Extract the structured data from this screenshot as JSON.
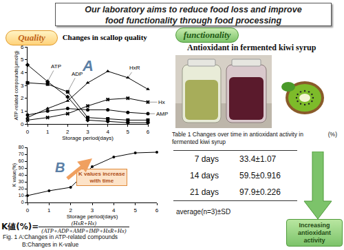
{
  "header": {
    "lines": [
      "Our laboratory aims to reduce food loss and improve",
      "food functionality through food processing"
    ]
  },
  "quality": {
    "label": "Quality"
  },
  "chart_data": [
    {
      "type": "line",
      "title": "Changes in scallop quality",
      "annotations": [
        "A"
      ],
      "x_label": "Storage period(days)",
      "y_label": "ATP-related compounds(μmol/g)",
      "x": [
        0,
        1,
        2,
        3,
        4,
        5,
        6
      ],
      "xlim": [
        0,
        6
      ],
      "xticks": [
        0,
        1,
        2,
        3,
        4,
        5,
        6
      ],
      "ylim": [
        0,
        6
      ],
      "yticks": [
        0,
        1,
        2,
        3,
        4,
        5,
        6
      ],
      "grid": false,
      "series": [
        {
          "name": "ATP",
          "color": "#000000",
          "marker": "diamond",
          "line_style": "solid",
          "values": [
            4.6,
            3.3,
            2.1,
            0.3,
            0.2,
            0.1,
            0.1
          ]
        },
        {
          "name": "ADP",
          "color": "#000000",
          "marker": "square",
          "line_style": "solid",
          "values": [
            3.2,
            3.1,
            2.5,
            0.5,
            0.4,
            0.3,
            0.3
          ]
        },
        {
          "name": "HxR",
          "color": "#000000",
          "marker": "triangle-up",
          "line_style": "solid",
          "values": [
            0.5,
            1.2,
            1.8,
            3.2,
            4.1,
            3.6,
            2.7
          ]
        },
        {
          "name": "Hx",
          "color": "#000000",
          "marker": "x",
          "line_style": "solid",
          "values": [
            0.3,
            0.5,
            0.8,
            1.4,
            1.9,
            2.0,
            1.7
          ]
        },
        {
          "name": "AMP",
          "color": "#000000",
          "marker": "circle",
          "line_style": "solid",
          "values": [
            0.7,
            1.0,
            1.2,
            1.1,
            1.1,
            0.9,
            0.8
          ]
        }
      ]
    },
    {
      "type": "line",
      "annotations": [
        "B",
        [
          "K values increase",
          "with time"
        ]
      ],
      "x_label": "Storage period(days)",
      "y_label": "K value(%)",
      "x": [
        0,
        1,
        2,
        3,
        4,
        5,
        6
      ],
      "values": [
        10,
        17,
        22,
        52,
        66,
        72,
        73
      ],
      "color": "#000000",
      "marker": "circle",
      "line_style": "solid",
      "xlim": [
        0,
        6
      ],
      "xticks": [
        0,
        1,
        2,
        3,
        4,
        5,
        6
      ],
      "ylim": [
        0,
        80
      ],
      "yticks": [
        0,
        10,
        20,
        30,
        40,
        50,
        60,
        70,
        80
      ],
      "grid": false
    }
  ],
  "formula": {
    "lhs": "K値(%)=",
    "numerator": "(HxR+Hx)",
    "denominator": "(ATP+ADP+AMP+IMP+HxR+Hx)"
  },
  "caption": {
    "lines": [
      "Fig. 1 A:Changes in ATP-related compounds",
      "B:Changes in K-value"
    ]
  },
  "functionality": {
    "label": "functionality",
    "title": "Antioxidant in fermented kiwi syrup",
    "table": {
      "title": "Table 1  Changes over time in antioxidant activity in fermented kiwi syrup",
      "unit": "(%)",
      "rows": [
        [
          "7 days",
          "33.4±1.07"
        ],
        [
          "14 days",
          "59.5±0.916"
        ],
        [
          "21 days",
          "97.9±0.226"
        ]
      ],
      "footer": "average(n=3)±SD"
    },
    "arrow_label": "Increasing antioxidant activity"
  }
}
